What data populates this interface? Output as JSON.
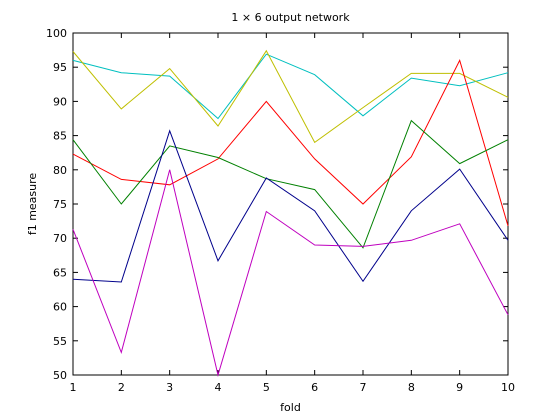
{
  "chart_data": {
    "type": "line",
    "title": "1 × 6 output network",
    "xlabel": "fold",
    "ylabel": "f1 measure",
    "xlim": [
      1,
      10
    ],
    "ylim": [
      50,
      100
    ],
    "grid": false,
    "x": [
      1,
      2,
      3,
      4,
      5,
      6,
      7,
      8,
      9,
      10
    ],
    "xticks": [
      "1",
      "2",
      "3",
      "4",
      "5",
      "6",
      "7",
      "8",
      "9",
      "10"
    ],
    "yticks": [
      "50",
      "55",
      "60",
      "65",
      "70",
      "75",
      "80",
      "85",
      "90",
      "95",
      "100"
    ],
    "series": [
      {
        "color": "#00bfbf",
        "values": [
          96.0,
          94.2,
          93.7,
          87.5,
          96.9,
          93.9,
          87.9,
          93.4,
          92.3,
          94.2
        ]
      },
      {
        "color": "#bfbf00",
        "values": [
          97.3,
          88.9,
          94.8,
          86.4,
          97.4,
          84.0,
          89.1,
          94.1,
          94.1,
          90.6
        ]
      },
      {
        "color": "#ff0000",
        "values": [
          82.3,
          78.6,
          77.8,
          81.6,
          90.0,
          81.6,
          75.0,
          81.9,
          96.0,
          71.8
        ]
      },
      {
        "color": "#008000",
        "values": [
          84.4,
          75.0,
          83.5,
          81.8,
          78.7,
          77.1,
          68.6,
          87.2,
          80.9,
          84.4
        ]
      },
      {
        "color": "#00008b",
        "values": [
          64.0,
          63.6,
          85.7,
          66.7,
          78.8,
          74.0,
          63.7,
          74.0,
          80.1,
          69.7
        ]
      },
      {
        "color": "#bf00bf",
        "values": [
          71.3,
          53.3,
          80.0,
          50.0,
          73.9,
          69.0,
          68.8,
          69.7,
          72.1,
          58.8
        ]
      }
    ]
  }
}
